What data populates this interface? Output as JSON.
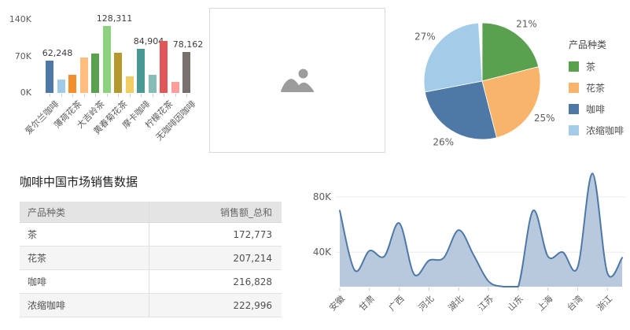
{
  "chart_data": [
    {
      "type": "bar",
      "title": "",
      "y_tick_labels": [
        "0K",
        "70K",
        "140K"
      ],
      "ylim": [
        0,
        140000
      ],
      "categories": [
        "爱尔兰咖啡",
        "",
        "薄荷花茶",
        "",
        "大吉岭茶",
        "",
        "黄春菊花茶",
        "",
        "摩卡咖啡",
        "",
        "柠檬花茶",
        "",
        "无咖啡因咖啡"
      ],
      "values": [
        62248,
        25000,
        35000,
        68000,
        75000,
        128311,
        77000,
        32000,
        84904,
        35000,
        100000,
        21000,
        78162
      ],
      "colors": [
        "#4e79a7",
        "#a0cbe8",
        "#f28e2b",
        "#ffbe7d",
        "#59a14f",
        "#8cd17d",
        "#b6992d",
        "#f1ce63",
        "#499894",
        "#86bcb6",
        "#e15759",
        "#ff9d9a",
        "#79706e"
      ],
      "value_labels": {
        "0": "62,248",
        "5": "128,311",
        "8": "84,904",
        "12": "78,162"
      }
    },
    {
      "type": "pie",
      "legend_title": "产品种类",
      "slices": [
        {
          "label": "茶",
          "percent": 21,
          "percent_label": "21%",
          "color": "#59a14f"
        },
        {
          "label": "花茶",
          "percent": 25,
          "percent_label": "25%",
          "color": "#f9b46b"
        },
        {
          "label": "咖啡",
          "percent": 26,
          "percent_label": "26%",
          "color": "#4e79a7"
        },
        {
          "label": "浓缩咖啡",
          "percent": 27,
          "percent_label": "27%",
          "color": "#a3cce9"
        }
      ],
      "legend_position": "right"
    },
    {
      "type": "table",
      "title": "咖啡中国市场销售数据",
      "columns": [
        "产品种类",
        "销售额_总和"
      ],
      "rows": [
        [
          "茶",
          "172,773"
        ],
        [
          "花茶",
          "207,214"
        ],
        [
          "咖啡",
          "216,828"
        ],
        [
          "浓缩咖啡",
          "222,996"
        ]
      ]
    },
    {
      "type": "area",
      "y_tick_labels": [
        "40K",
        "80K"
      ],
      "y_tick_values": [
        40000,
        80000
      ],
      "ylim": [
        15000,
        101000
      ],
      "categories": [
        "安徽",
        "甘肃",
        "广西",
        "河北",
        "湖北",
        "江苏",
        "山东",
        "上海",
        "台湾",
        "浙江"
      ],
      "category_point_indices": [
        0,
        2,
        4,
        6,
        8,
        10,
        12,
        14,
        16,
        18
      ],
      "values": [
        70000,
        27000,
        41000,
        37000,
        61000,
        24000,
        34000,
        36000,
        56000,
        38000,
        19000,
        15000,
        15000,
        70000,
        37000,
        40000,
        29000,
        97000,
        25000,
        36000
      ],
      "line_color": "#4e79a7",
      "fill_color": "#b9c9dd",
      "grid": true
    }
  ],
  "image_placeholder": {
    "icon": "image-icon"
  }
}
